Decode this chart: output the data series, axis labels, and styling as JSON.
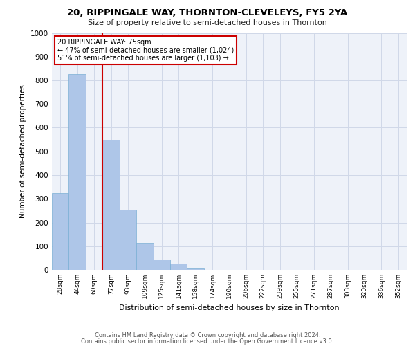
{
  "title_line1": "20, RIPPINGALE WAY, THORNTON-CLEVELEYS, FY5 2YA",
  "title_line2": "Size of property relative to semi-detached houses in Thornton",
  "xlabel": "Distribution of semi-detached houses by size in Thornton",
  "ylabel": "Number of semi-detached properties",
  "footer_line1": "Contains HM Land Registry data © Crown copyright and database right 2024.",
  "footer_line2": "Contains public sector information licensed under the Open Government Licence v3.0.",
  "annotation_line1": "20 RIPPINGALE WAY: 75sqm",
  "annotation_line2": "← 47% of semi-detached houses are smaller (1,024)",
  "annotation_line3": "51% of semi-detached houses are larger (1,103) →",
  "bar_color": "#aec6e8",
  "bar_edge_color": "#7aafd4",
  "vline_color": "#cc0000",
  "annotation_box_edge": "#cc0000",
  "grid_color": "#d0d8e8",
  "background_color": "#eef2f9",
  "categories": [
    "28sqm",
    "44sqm",
    "60sqm",
    "77sqm",
    "93sqm",
    "109sqm",
    "125sqm",
    "141sqm",
    "158sqm",
    "174sqm",
    "190sqm",
    "206sqm",
    "222sqm",
    "239sqm",
    "255sqm",
    "271sqm",
    "287sqm",
    "303sqm",
    "320sqm",
    "336sqm",
    "352sqm"
  ],
  "values": [
    325,
    825,
    0,
    550,
    255,
    115,
    45,
    25,
    5,
    0,
    0,
    0,
    0,
    0,
    0,
    0,
    0,
    0,
    0,
    0,
    0
  ],
  "ylim": [
    0,
    1000
  ],
  "yticks": [
    0,
    100,
    200,
    300,
    400,
    500,
    600,
    700,
    800,
    900,
    1000
  ],
  "vline_x": 2.5
}
